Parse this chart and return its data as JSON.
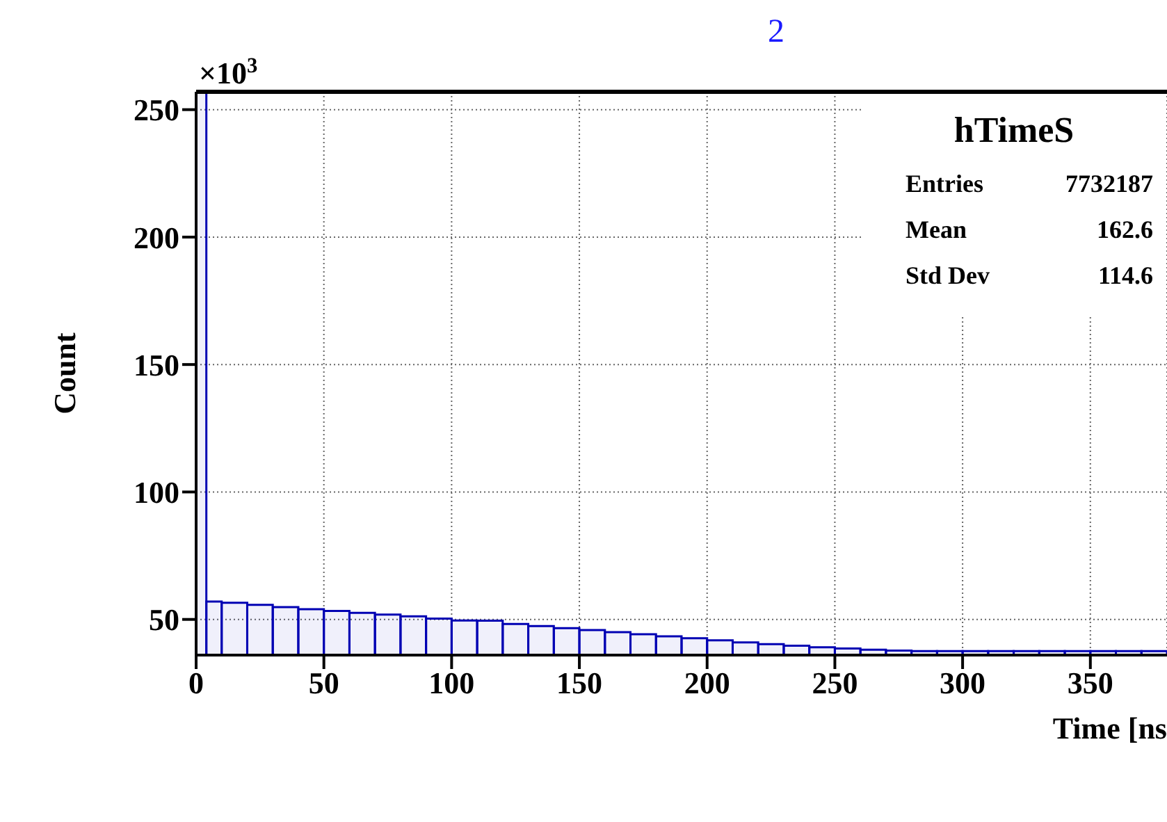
{
  "chart_data": {
    "type": "histogram",
    "title": "2",
    "xlabel": "Time [ns",
    "ylabel": "Count",
    "bins": [
      0,
      4,
      10,
      20,
      30,
      40,
      50,
      60,
      70,
      80,
      90,
      100,
      110,
      120,
      130,
      140,
      150,
      160,
      170,
      180,
      190,
      200,
      210,
      220,
      230,
      240,
      250,
      260,
      270,
      280,
      290,
      300,
      310,
      320,
      330,
      340,
      350,
      360,
      370,
      380
    ],
    "values": [
      257,
      57,
      56.5,
      55.7,
      54.8,
      54,
      53.3,
      52.6,
      51.9,
      51.2,
      50.3,
      49.6,
      49.5,
      48.2,
      47.4,
      46.6,
      45.8,
      45,
      44.2,
      43.4,
      42.6,
      41.8,
      41,
      40.3,
      39.7,
      39.1,
      38.6,
      38.1,
      37.8,
      37.6,
      37.6,
      37.6,
      37.6,
      37.6,
      37.6,
      37.6,
      37.6,
      37.6,
      37.6
    ],
    "color": "#0000b3",
    "xlim": [
      0,
      380
    ],
    "ylim": [
      36,
      257
    ],
    "xticks": [
      0,
      50,
      100,
      150,
      200,
      250,
      300,
      350
    ],
    "yticks": [
      50,
      100,
      150,
      200,
      250
    ],
    "grid": true,
    "annotations": [
      "×10$^{3}$",
      "hTimeS",
      "Entries",
      "7732187",
      "Mean",
      "162.6",
      "Std Dev",
      "114.6"
    ]
  }
}
